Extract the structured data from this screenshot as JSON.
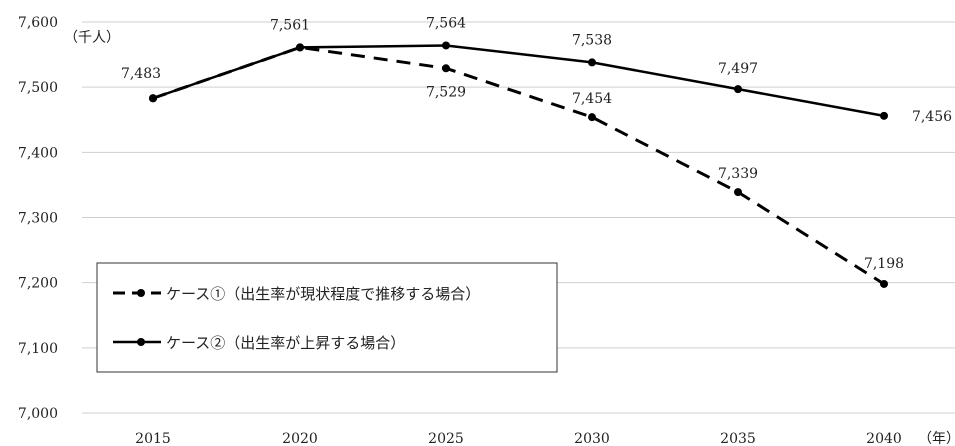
{
  "chart_data": {
    "type": "line",
    "y_unit": "（千人）",
    "x_unit": "（年）",
    "categories": [
      "2015",
      "2020",
      "2025",
      "2030",
      "2035",
      "2040"
    ],
    "ylim": [
      7000,
      7600
    ],
    "yticks": [
      "7,000",
      "7,100",
      "7,200",
      "7,300",
      "7,400",
      "7,500",
      "7,600"
    ],
    "grid": true,
    "legend_position": "lower-left",
    "series": [
      {
        "name": "ケース①（出生率が現状程度で推移する場合）",
        "style": "dashed",
        "color": "#000000",
        "values": [
          7483,
          7561,
          7529,
          7454,
          7339,
          7198
        ],
        "labels": [
          "7,483",
          "7,561",
          "7,529",
          "7,454",
          "7,339",
          "7,198"
        ]
      },
      {
        "name": "ケース②（出生率が上昇する場合）",
        "style": "solid",
        "color": "#000000",
        "values": [
          7483,
          7561,
          7564,
          7538,
          7497,
          7456
        ],
        "labels": [
          "7,483",
          "7,561",
          "7,564",
          "7,538",
          "7,497",
          "7,456"
        ]
      }
    ]
  }
}
